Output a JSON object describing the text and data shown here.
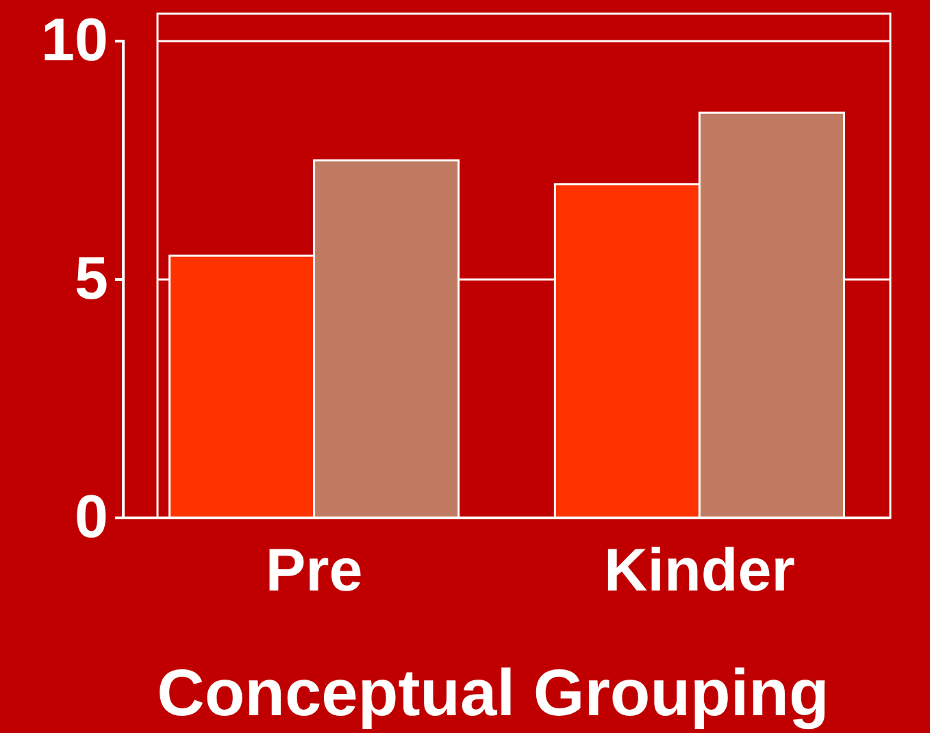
{
  "chart_data": {
    "type": "bar",
    "xlabel": "Conceptual Grouping",
    "categories": [
      "Pre",
      "Kinder"
    ],
    "series": [
      {
        "color": "#ff3300",
        "values": [
          5.5,
          7
        ]
      },
      {
        "color": "#c17b63",
        "values": [
          7.5,
          8.5
        ]
      }
    ],
    "ylim": [
      0,
      10
    ],
    "yticks": [
      0,
      5,
      10
    ],
    "grid": "y"
  }
}
